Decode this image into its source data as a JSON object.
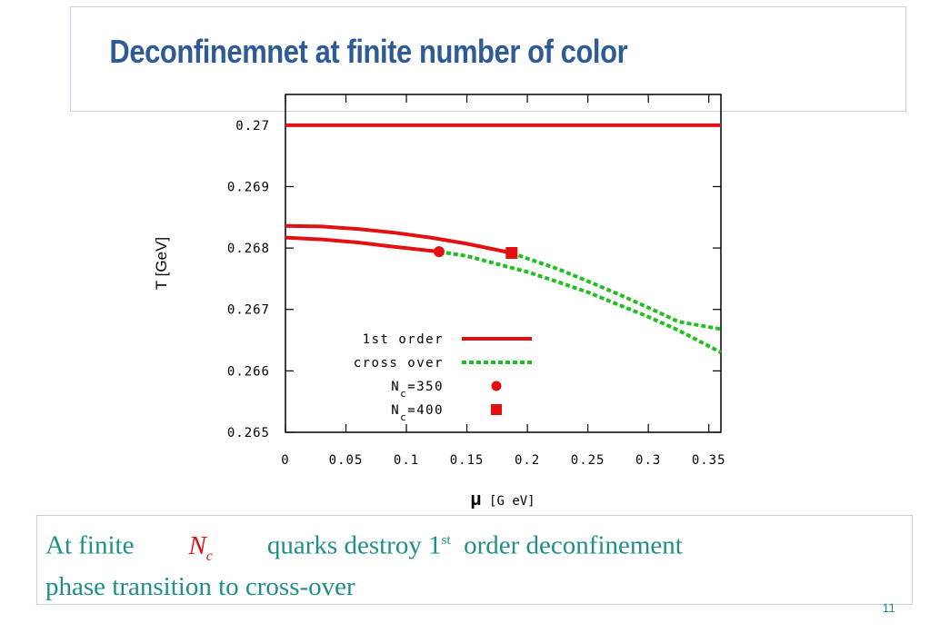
{
  "slide": {
    "title": "Deconfinemnet at finite number of color",
    "caption_part1": "At finite",
    "caption_nc_main": "N",
    "caption_nc_sub": "c",
    "caption_part2": "quarks destroy 1",
    "caption_sup": "st",
    "caption_part3": "order deconfinement",
    "caption_line2": "phase transition to cross-over",
    "page_number": "11"
  },
  "chart_data": {
    "type": "line",
    "xlabel": "μ [G eV]",
    "ylabel": "T [GeV]",
    "xlim": [
      0,
      0.36
    ],
    "ylim": [
      0.265,
      0.2705
    ],
    "xticks": [
      "0",
      "0.05",
      "0.1",
      "0.15",
      "0.2",
      "0.25",
      "0.3",
      "0.35"
    ],
    "xtick_values": [
      0,
      0.05,
      0.1,
      0.15,
      0.2,
      0.25,
      0.3,
      0.35
    ],
    "yticks": [
      "0.265",
      "0.266",
      "0.267",
      "0.268",
      "0.269",
      "0.27"
    ],
    "ytick_values": [
      0.265,
      0.266,
      0.267,
      0.268,
      0.269,
      0.27
    ],
    "legend_position": "lower-left",
    "grid": false,
    "colors": {
      "first_order": "#e21010",
      "cross_over": "#1fbf1f",
      "axis": "#000000"
    },
    "series": [
      {
        "name": "1st order",
        "style": "solid",
        "color": "#e21010",
        "x": [
          0,
          0.36
        ],
        "y": [
          0.27,
          0.27
        ]
      },
      {
        "name": "1st order",
        "style": "solid",
        "color": "#e21010",
        "x": [
          0,
          0.03,
          0.06,
          0.09,
          0.12,
          0.15,
          0.187
        ],
        "y": [
          0.26836,
          0.26835,
          0.26831,
          0.26825,
          0.26817,
          0.26807,
          0.26792
        ]
      },
      {
        "name": "1st order",
        "style": "solid",
        "color": "#e21010",
        "x": [
          0,
          0.03,
          0.06,
          0.09,
          0.127
        ],
        "y": [
          0.26817,
          0.26814,
          0.26809,
          0.26802,
          0.26794
        ]
      },
      {
        "name": "cross over",
        "style": "dashed",
        "color": "#1fbf1f",
        "x": [
          0.187,
          0.2,
          0.225,
          0.25,
          0.275,
          0.3,
          0.325,
          0.36
        ],
        "y": [
          0.26792,
          0.26783,
          0.26766,
          0.26746,
          0.26725,
          0.26703,
          0.2668,
          0.26668
        ]
      },
      {
        "name": "cross over",
        "style": "dashed",
        "color": "#1fbf1f",
        "x": [
          0.127,
          0.15,
          0.175,
          0.2,
          0.225,
          0.25,
          0.275,
          0.3,
          0.325,
          0.36
        ],
        "y": [
          0.26794,
          0.26787,
          0.26774,
          0.26761,
          0.26745,
          0.26728,
          0.26708,
          0.26688,
          0.26666,
          0.2663
        ]
      }
    ],
    "markers": [
      {
        "name": "N_c=350",
        "shape": "circle",
        "color": "#e21010",
        "x": 0.127,
        "y": 0.26794
      },
      {
        "name": "N_c=400",
        "shape": "square",
        "color": "#e21010",
        "x": 0.187,
        "y": 0.26792
      }
    ],
    "legend": [
      {
        "label": "1st order",
        "kind": "solid"
      },
      {
        "label": "cross over",
        "kind": "dashed"
      },
      {
        "label_main": "N",
        "label_sub": "c",
        "label_rest": "=350",
        "kind": "circle"
      },
      {
        "label_main": "N",
        "label_sub": "c",
        "label_rest": "=400",
        "kind": "square"
      }
    ]
  }
}
